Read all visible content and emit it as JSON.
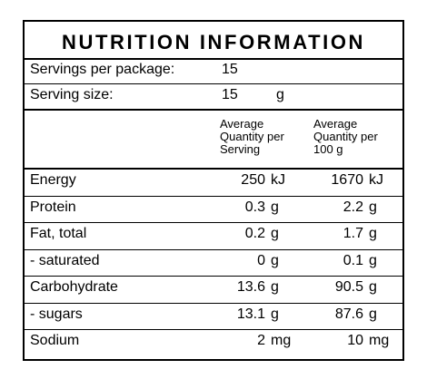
{
  "title": "NUTRITION INFORMATION",
  "servings_per_package": {
    "label": "Servings per package:",
    "value": "15"
  },
  "serving_size": {
    "label": "Serving size:",
    "value": "15",
    "unit": "g"
  },
  "columns": {
    "per_serving": "Average\nQuantity per\nServing",
    "per_100g": "Average\nQuantity per\n100 g"
  },
  "rows": [
    {
      "name": "Energy",
      "per_serving": "250",
      "per_serving_unit": "kJ",
      "per_100g": "1670",
      "per_100g_unit": "kJ"
    },
    {
      "name": "Protein",
      "per_serving": "0.3",
      "per_serving_unit": "g",
      "per_100g": "2.2",
      "per_100g_unit": "g"
    },
    {
      "name": "Fat, total",
      "per_serving": "0.2",
      "per_serving_unit": "g",
      "per_100g": "1.7",
      "per_100g_unit": "g"
    },
    {
      "name": "- saturated",
      "per_serving": "0",
      "per_serving_unit": "g",
      "per_100g": "0.1",
      "per_100g_unit": "g"
    },
    {
      "name": "Carbohydrate",
      "per_serving": "13.6",
      "per_serving_unit": "g",
      "per_100g": "90.5",
      "per_100g_unit": "g"
    },
    {
      "name": "- sugars",
      "per_serving": "13.1",
      "per_serving_unit": "g",
      "per_100g": "87.6",
      "per_100g_unit": "g"
    },
    {
      "name": "Sodium",
      "per_serving": "2",
      "per_serving_unit": "mg",
      "per_100g": "10",
      "per_100g_unit": "mg"
    }
  ]
}
